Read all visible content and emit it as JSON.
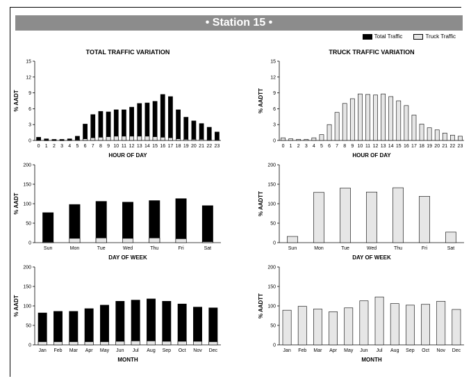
{
  "header": {
    "title": "• Station 15 •"
  },
  "legend": [
    {
      "label": "Total Traffic",
      "color": "#000000"
    },
    {
      "label": "Truck Traffic",
      "color": "#e6e6e6"
    }
  ],
  "chart_data": [
    {
      "type": "bar",
      "title": "TOTAL TRAFFIC VARIATION",
      "xlabel": "HOUR OF DAY",
      "ylabel": "% AADT",
      "ylim": [
        0,
        15
      ],
      "yticks": [
        0,
        3,
        6,
        9,
        12,
        15
      ],
      "categories": [
        "0",
        "1",
        "2",
        "3",
        "4",
        "5",
        "6",
        "7",
        "8",
        "9",
        "10",
        "11",
        "12",
        "13",
        "14",
        "15",
        "16",
        "17",
        "18",
        "19",
        "20",
        "21",
        "22",
        "23"
      ],
      "series": [
        {
          "name": "Total Traffic",
          "values": [
            0.6,
            0.3,
            0.2,
            0.2,
            0.3,
            0.8,
            3.1,
            4.9,
            5.5,
            5.4,
            5.8,
            5.8,
            6.3,
            7.0,
            7.1,
            7.4,
            8.7,
            8.3,
            5.8,
            4.4,
            3.7,
            3.2,
            2.5,
            1.6
          ]
        },
        {
          "name": "Truck Traffic",
          "values": [
            0.05,
            0.02,
            0.02,
            0.02,
            0.05,
            0.1,
            0.3,
            0.5,
            0.6,
            0.7,
            0.8,
            0.8,
            0.8,
            0.8,
            0.8,
            0.7,
            0.6,
            0.5,
            0.3,
            0.2,
            0.2,
            0.2,
            0.1,
            0.1
          ]
        }
      ]
    },
    {
      "type": "bar",
      "title": "TRUCK TRAFFIC VARIATION",
      "xlabel": "HOUR OF DAY",
      "ylabel": "% AADTT",
      "ylim": [
        0,
        15
      ],
      "yticks": [
        0,
        3,
        6,
        9,
        12,
        15
      ],
      "categories": [
        "0",
        "1",
        "2",
        "3",
        "4",
        "5",
        "6",
        "7",
        "8",
        "9",
        "10",
        "11",
        "12",
        "13",
        "14",
        "15",
        "16",
        "17",
        "18",
        "19",
        "20",
        "21",
        "22",
        "23"
      ],
      "series": [
        {
          "name": "Truck Traffic",
          "values": [
            0.5,
            0.3,
            0.2,
            0.2,
            0.5,
            1.1,
            3.0,
            5.3,
            7.0,
            7.9,
            8.8,
            8.7,
            8.6,
            8.8,
            8.3,
            7.5,
            6.6,
            4.8,
            3.1,
            2.4,
            2.0,
            1.4,
            1.0,
            0.8
          ]
        }
      ]
    },
    {
      "type": "bar",
      "xlabel": "DAY OF WEEK",
      "ylabel": "% AADT",
      "ylim": [
        0,
        200
      ],
      "yticks": [
        0,
        50,
        100,
        150,
        200
      ],
      "categories": [
        "Sun",
        "Mon",
        "Tue",
        "Wed",
        "Thu",
        "Fri",
        "Sat"
      ],
      "series": [
        {
          "name": "Total Traffic",
          "values": [
            77,
            98,
            106,
            104,
            108,
            113,
            95
          ]
        },
        {
          "name": "Truck Traffic",
          "values": [
            1.5,
            11,
            12,
            11,
            12,
            10,
            2.5
          ]
        }
      ]
    },
    {
      "type": "bar",
      "xlabel": "DAY OF WEEK",
      "ylabel": "% AADTT",
      "ylim": [
        0,
        200
      ],
      "yticks": [
        0,
        50,
        100,
        150,
        200
      ],
      "categories": [
        "Sun",
        "Mon",
        "Tue",
        "Wed",
        "Thu",
        "Fri",
        "Sat"
      ],
      "series": [
        {
          "name": "Truck Traffic",
          "values": [
            16,
            129,
            140,
            130,
            141,
            119,
            27
          ]
        }
      ]
    },
    {
      "type": "bar",
      "xlabel": "MONTH",
      "ylabel": "% AADT",
      "ylim": [
        0,
        200
      ],
      "yticks": [
        0,
        50,
        100,
        150,
        200
      ],
      "categories": [
        "Jan",
        "Feb",
        "Mar",
        "Apr",
        "May",
        "Jun",
        "Jul",
        "Aug",
        "Sep",
        "Oct",
        "Nov",
        "Dec"
      ],
      "series": [
        {
          "name": "Total Traffic",
          "values": [
            82,
            86,
            86,
            93,
            102,
            112,
            115,
            118,
            112,
            105,
            97,
            95
          ]
        },
        {
          "name": "Truck Traffic",
          "values": [
            8,
            8,
            8,
            8,
            8,
            9,
            10,
            10,
            9,
            9,
            9,
            8
          ]
        }
      ]
    },
    {
      "type": "bar",
      "xlabel": "MONTH",
      "ylabel": "% AADTT",
      "ylim": [
        0,
        200
      ],
      "yticks": [
        0,
        50,
        100,
        150,
        200
      ],
      "categories": [
        "Jan",
        "Feb",
        "Mar",
        "Apr",
        "May",
        "Jun",
        "Jul",
        "Aug",
        "Sep",
        "Oct",
        "Nov",
        "Dec"
      ],
      "series": [
        {
          "name": "Truck Traffic",
          "values": [
            89,
            99,
            92,
            85,
            95,
            113,
            123,
            106,
            102,
            104,
            112,
            91
          ]
        }
      ]
    }
  ]
}
